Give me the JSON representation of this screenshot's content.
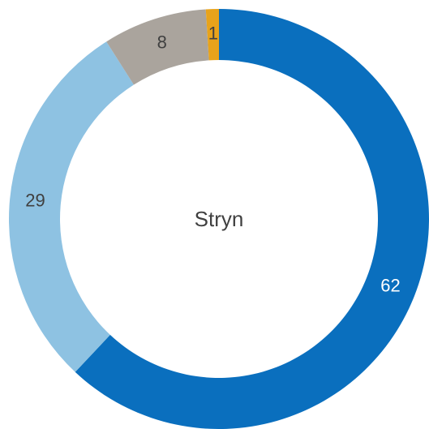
{
  "chart_data": {
    "type": "donut",
    "title": "Stryn",
    "categories": [
      null,
      null,
      null,
      null
    ],
    "values": [
      62,
      29,
      8,
      1
    ],
    "colors": [
      "#0a6fbe",
      "#8ec2e2",
      "#aaa49d",
      "#e8a31b"
    ]
  }
}
